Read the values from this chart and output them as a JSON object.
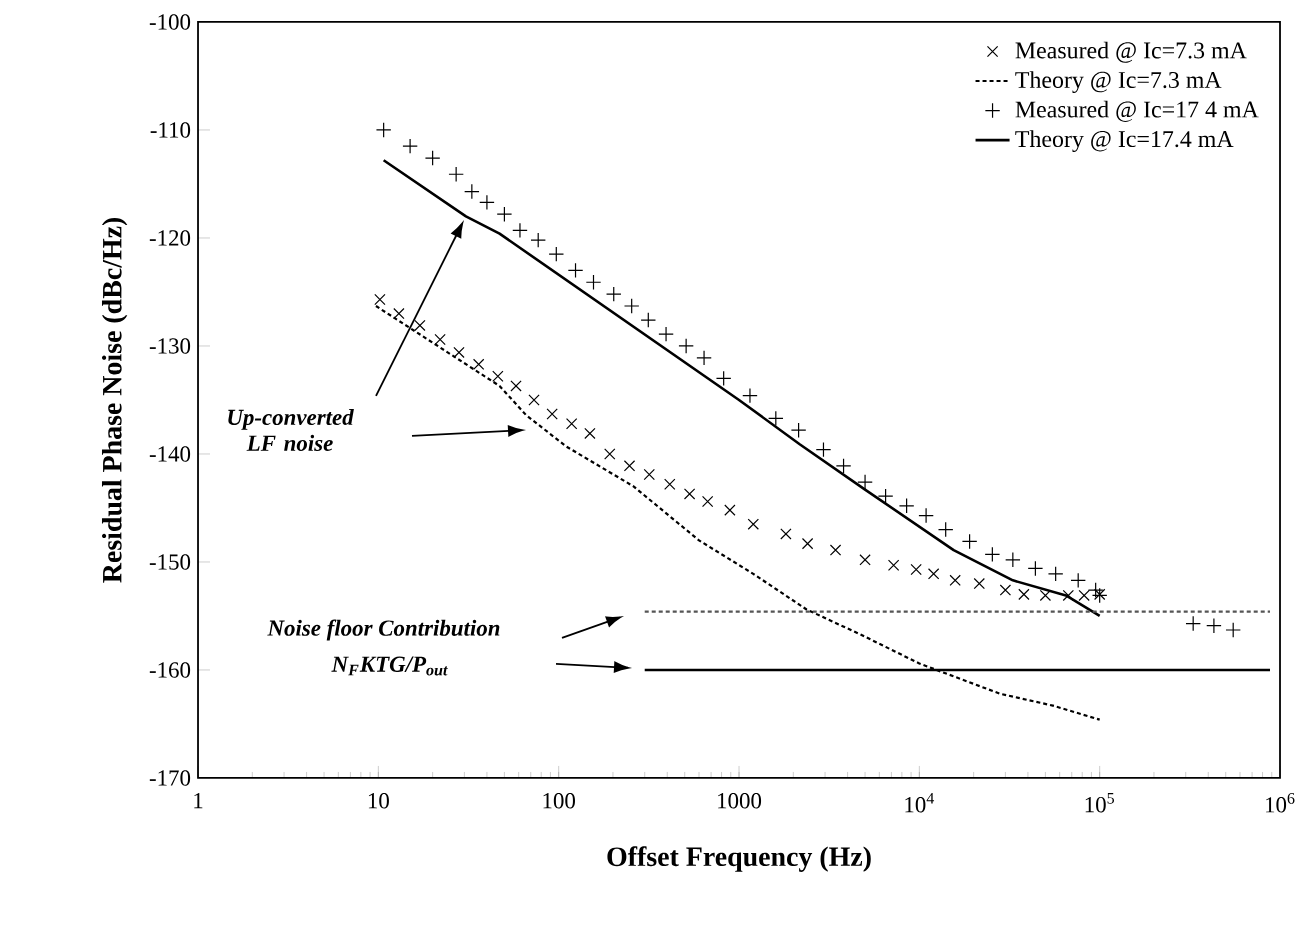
{
  "chart_data": {
    "type": "line",
    "xlabel": "Offset Frequency (Hz)",
    "ylabel": "Residual Phase Noise (dBc/Hz)",
    "log": "x",
    "xlim": [
      1,
      1000000
    ],
    "ylim": [
      -170,
      -100
    ],
    "xticks": [
      1,
      10,
      100,
      1000,
      {
        "value": 10000,
        "label": "10$^{4}$"
      },
      {
        "value": 100000,
        "label": "10$^{5}$"
      },
      {
        "value": 1000000,
        "label": "10$^{6}$"
      }
    ],
    "yticks": [
      -170,
      -160,
      -150,
      -140,
      -130,
      -120,
      -110,
      -100
    ],
    "legend": "top right",
    "series": [
      {
        "name": "Measured @ Ic=7.3 mA",
        "type": "scatter",
        "marker": "cross",
        "color": "#000000",
        "x": [
          10.2,
          13,
          17,
          22,
          28,
          36,
          46,
          58,
          73,
          92,
          118,
          149,
          192,
          247,
          318,
          413,
          532,
          670,
          890,
          1200,
          1820,
          2400,
          3430,
          5000,
          7200,
          9600,
          12000,
          15800,
          21500,
          30000,
          38000,
          50000,
          67000,
          82000,
          100000
        ],
        "values": [
          -125.7,
          -127.0,
          -128.1,
          -129.4,
          -130.6,
          -131.7,
          -132.8,
          -133.7,
          -135.0,
          -136.3,
          -137.2,
          -138.1,
          -140.0,
          -141.1,
          -141.9,
          -142.8,
          -143.7,
          -144.4,
          -145.2,
          -146.5,
          -147.4,
          -148.3,
          -148.9,
          -149.8,
          -150.3,
          -150.7,
          -151.1,
          -151.7,
          -152.0,
          -152.6,
          -153.0,
          -153.1,
          -153.1,
          -153.1,
          -153.0
        ]
      },
      {
        "name": "Theory @ Ic=7.3 mA",
        "line_style": "dotted",
        "color": "#000000",
        "x": [
          9.7,
          47,
          66,
          110,
          260,
          600,
          1200,
          2370,
          4700,
          10000,
          28000,
          55000,
          100000
        ],
        "values": [
          -126.3,
          -133.7,
          -136.4,
          -139.3,
          -143.0,
          -148.0,
          -151.1,
          -154.4,
          -156.7,
          -159.4,
          -162.2,
          -163.3,
          -164.6
        ]
      },
      {
        "name": "Measured @ Ic=17 4 mA",
        "type": "scatter",
        "marker": "plus",
        "color": "#000000",
        "x": [
          10.7,
          15,
          20,
          27,
          33,
          40,
          50,
          61,
          77,
          97,
          124,
          156,
          202,
          254,
          314,
          394,
          509,
          640,
          822,
          1150,
          1600,
          2140,
          2940,
          3800,
          5000,
          6500,
          8500,
          10900,
          14000,
          19000,
          25400,
          33000,
          44000,
          57000,
          76000,
          95000,
          100000,
          330000,
          430000,
          550000
        ],
        "values": [
          -110.0,
          -111.5,
          -112.6,
          -114.1,
          -115.7,
          -116.7,
          -117.8,
          -119.3,
          -120.2,
          -121.5,
          -123.0,
          -124.1,
          -125.2,
          -126.3,
          -127.6,
          -128.9,
          -130.0,
          -131.1,
          -133.0,
          -134.6,
          -136.7,
          -137.8,
          -139.6,
          -141.1,
          -142.6,
          -143.9,
          -144.8,
          -145.7,
          -147.0,
          -148.1,
          -149.3,
          -149.8,
          -150.6,
          -151.1,
          -151.7,
          -152.6,
          -153.1,
          -155.7,
          -155.9,
          -156.3
        ]
      },
      {
        "name": "Theory @ Ic=17.4 mA",
        "line_style": "solid",
        "color": "#000000",
        "x": [
          10.7,
          30.6,
          47,
          1000,
          2170,
          5000,
          15500,
          33000,
          65000,
          100000
        ],
        "values": [
          -112.8,
          -118.0,
          -119.6,
          -135.0,
          -139.1,
          -143.3,
          -148.9,
          -151.7,
          -153.1,
          -155.0
        ]
      },
      {
        "line_style": "dotted",
        "color": "#555555",
        "x": [
          300,
          880000
        ],
        "values": [
          -154.6,
          -154.6
        ]
      },
      {
        "line_style": "solid",
        "color": "#000000",
        "x": [
          300,
          880000
        ],
        "values": [
          -160,
          -160
        ]
      }
    ],
    "annotations": [
      "Up-converted LF noise",
      "Noise floor Contribution",
      "N$_{F}$KTG/P$_{out}$"
    ]
  }
}
